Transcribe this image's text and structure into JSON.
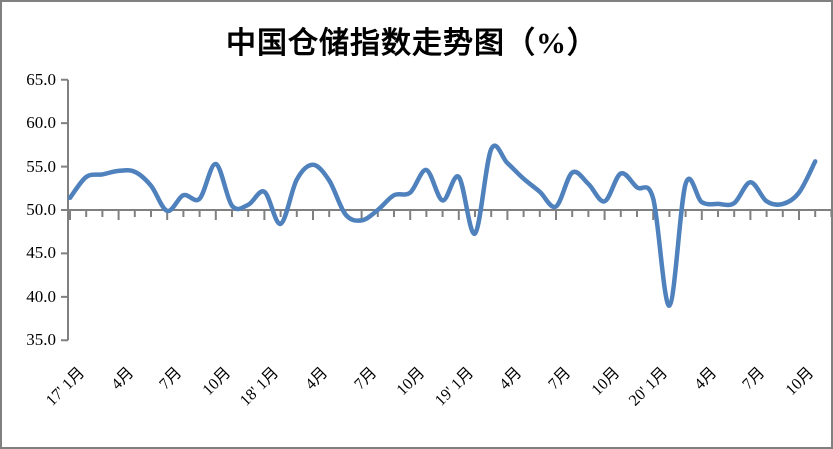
{
  "page": {
    "title_label": "中国仓储指数走势图（%）"
  },
  "chart_data": {
    "type": "line",
    "title": "中国仓储指数走势图（%）",
    "unit": "%",
    "smooth": true,
    "grid": "off",
    "legend": "none",
    "line_color": "#4F81BD",
    "axis_color": "#808080",
    "baseline": 50.0,
    "ylim": [
      35.0,
      65.0
    ],
    "y_tick_labels": [
      "65.0",
      "60.0",
      "55.0",
      "50.0",
      "45.0",
      "40.0",
      "35.0"
    ],
    "y_tick_values": [
      65.0,
      60.0,
      55.0,
      50.0,
      45.0,
      40.0,
      35.0
    ],
    "x_tick_labels": [
      "17' 1月",
      "4月",
      "7月",
      "10月",
      "18' 1月",
      "4月",
      "7月",
      "10月",
      "19' 1月",
      "4月",
      "7月",
      "10月",
      "20' 1月",
      "4月",
      "7月",
      "10月"
    ],
    "x": [
      "2017-01",
      "2017-02",
      "2017-03",
      "2017-04",
      "2017-05",
      "2017-06",
      "2017-07",
      "2017-08",
      "2017-09",
      "2017-10",
      "2017-11",
      "2017-12",
      "2018-01",
      "2018-02",
      "2018-03",
      "2018-04",
      "2018-05",
      "2018-06",
      "2018-07",
      "2018-08",
      "2018-09",
      "2018-10",
      "2018-11",
      "2018-12",
      "2019-01",
      "2019-02",
      "2019-03",
      "2019-04",
      "2019-05",
      "2019-06",
      "2019-07",
      "2019-08",
      "2019-09",
      "2019-10",
      "2019-11",
      "2019-12",
      "2020-01",
      "2020-02",
      "2020-03",
      "2020-04",
      "2020-05",
      "2020-06",
      "2020-07",
      "2020-08",
      "2020-09",
      "2020-10",
      "2020-11"
    ],
    "values": [
      51.4,
      53.8,
      54.1,
      54.5,
      54.4,
      52.8,
      49.9,
      51.7,
      51.3,
      55.3,
      50.5,
      50.6,
      52.1,
      48.4,
      53.5,
      55.2,
      53.4,
      49.5,
      48.8,
      50.0,
      51.7,
      52.0,
      54.6,
      51.1,
      53.8,
      47.3,
      57.0,
      55.4,
      53.6,
      52.1,
      50.4,
      54.3,
      53.0,
      51.0,
      54.2,
      52.6,
      51.3,
      39.0,
      53.0,
      50.9,
      50.7,
      50.8,
      53.2,
      51.0,
      50.7,
      52.0,
      55.6
    ]
  }
}
